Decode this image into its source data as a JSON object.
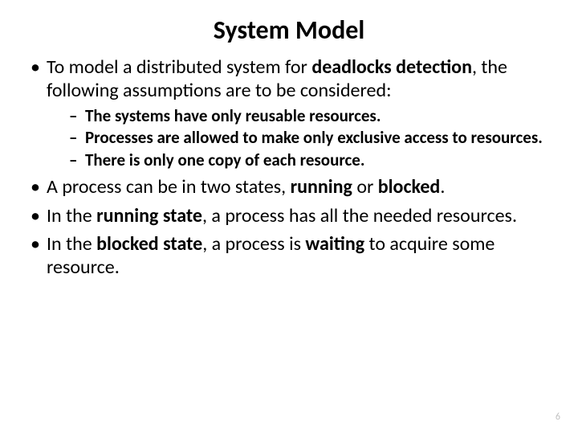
{
  "slide": {
    "title": "System Model",
    "title_fontsize": 32,
    "body_fontsize": 24,
    "sub_fontsize": 21,
    "pagenum_fontsize": 12,
    "bullet1": {
      "pre": "To model a distributed system for ",
      "bold": "deadlocks detection",
      "post": ", the following assumptions are to be considered:"
    },
    "sub1": "The systems have only reusable resources.",
    "sub2": "Processes are allowed to make only exclusive access to resources.",
    "sub3": "There is only one copy of each resource.",
    "bullet2": {
      "pre": "A process can be in two states, ",
      "bold1": "running",
      "mid": " or ",
      "bold2": "blocked",
      "post": "."
    },
    "bullet3": {
      "pre": "In the ",
      "bold": "running state",
      "post": ", a process has all the needed resources."
    },
    "bullet4": {
      "pre": "In the ",
      "bold1": "blocked state",
      "mid": ", a process is ",
      "bold2": "waiting",
      "post": " to acquire some resource."
    },
    "page_number": "6",
    "colors": {
      "text": "#000000",
      "bg": "#ffffff",
      "pagenum": "#bfbfbf"
    }
  }
}
